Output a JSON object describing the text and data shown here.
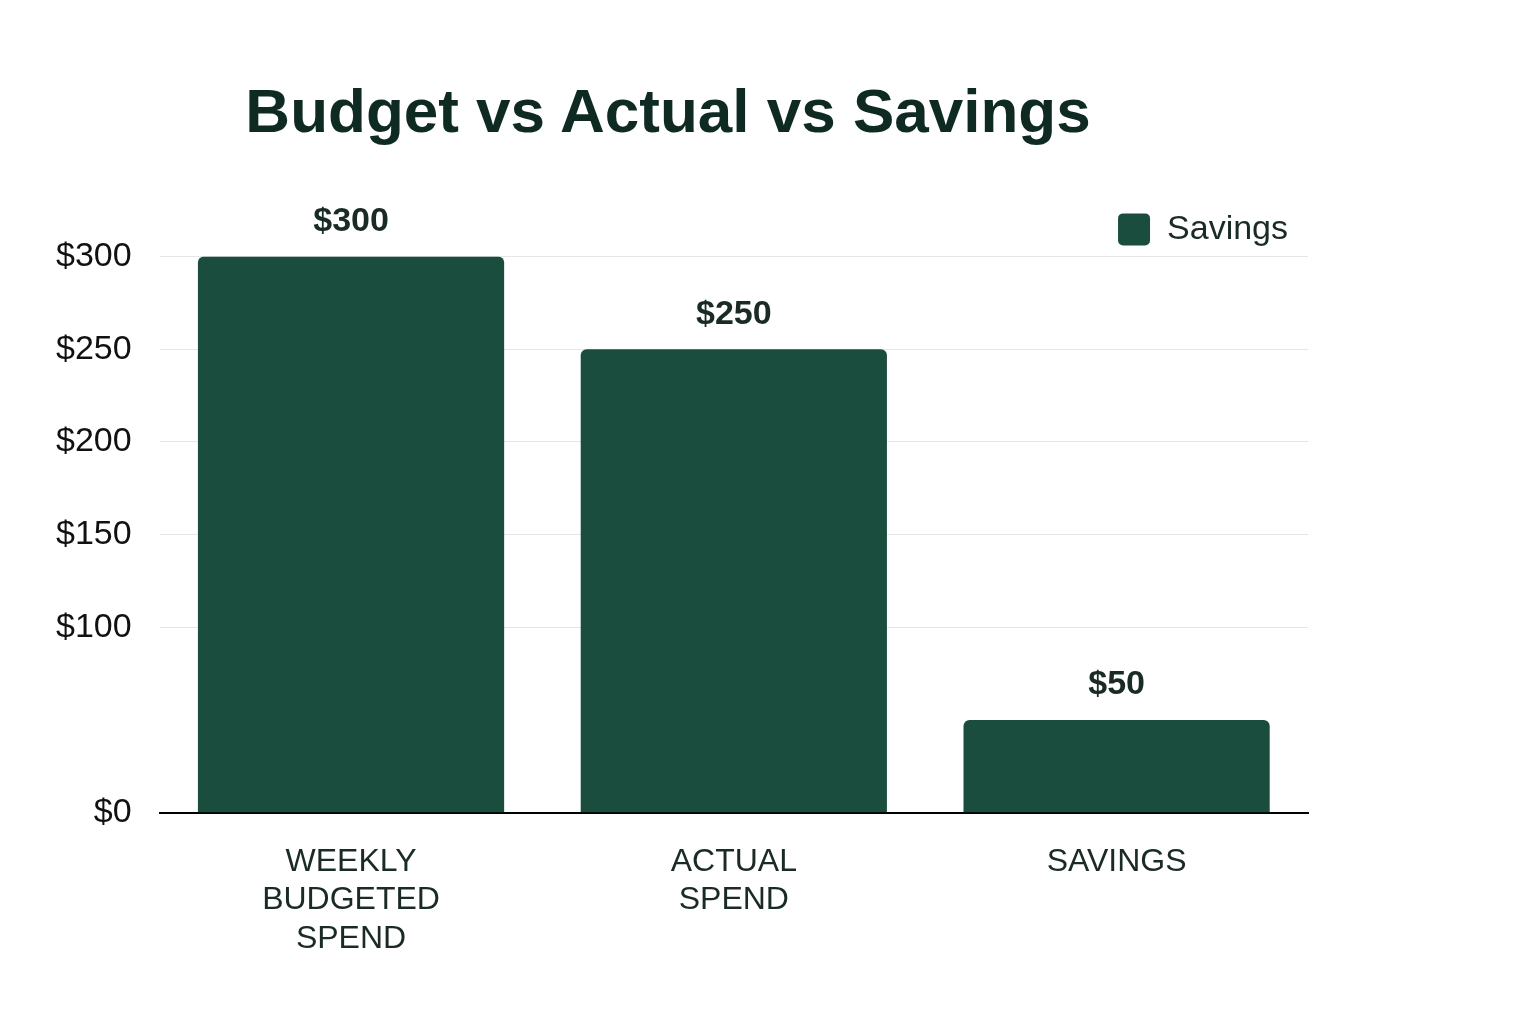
{
  "chart_data": {
    "type": "bar",
    "title": "Budget vs Actual vs Savings",
    "categories": [
      "WEEKLY BUDGETED SPEND",
      "ACTUAL SPEND",
      "SAVINGS"
    ],
    "series": [
      {
        "name": "Savings",
        "color": "#1b4d3e",
        "values": [
          300,
          250,
          50
        ]
      }
    ],
    "value_labels": [
      "$300",
      "$250",
      "$50"
    ],
    "ylim": [
      0,
      300
    ],
    "yticks": [
      {
        "value": 0,
        "label": "$0"
      },
      {
        "value": 100,
        "label": "$100"
      },
      {
        "value": 150,
        "label": "$150"
      },
      {
        "value": 200,
        "label": "$200"
      },
      {
        "value": 250,
        "label": "$250"
      },
      {
        "value": 300,
        "label": "$300"
      }
    ],
    "grid": "y",
    "legend": "top right"
  }
}
